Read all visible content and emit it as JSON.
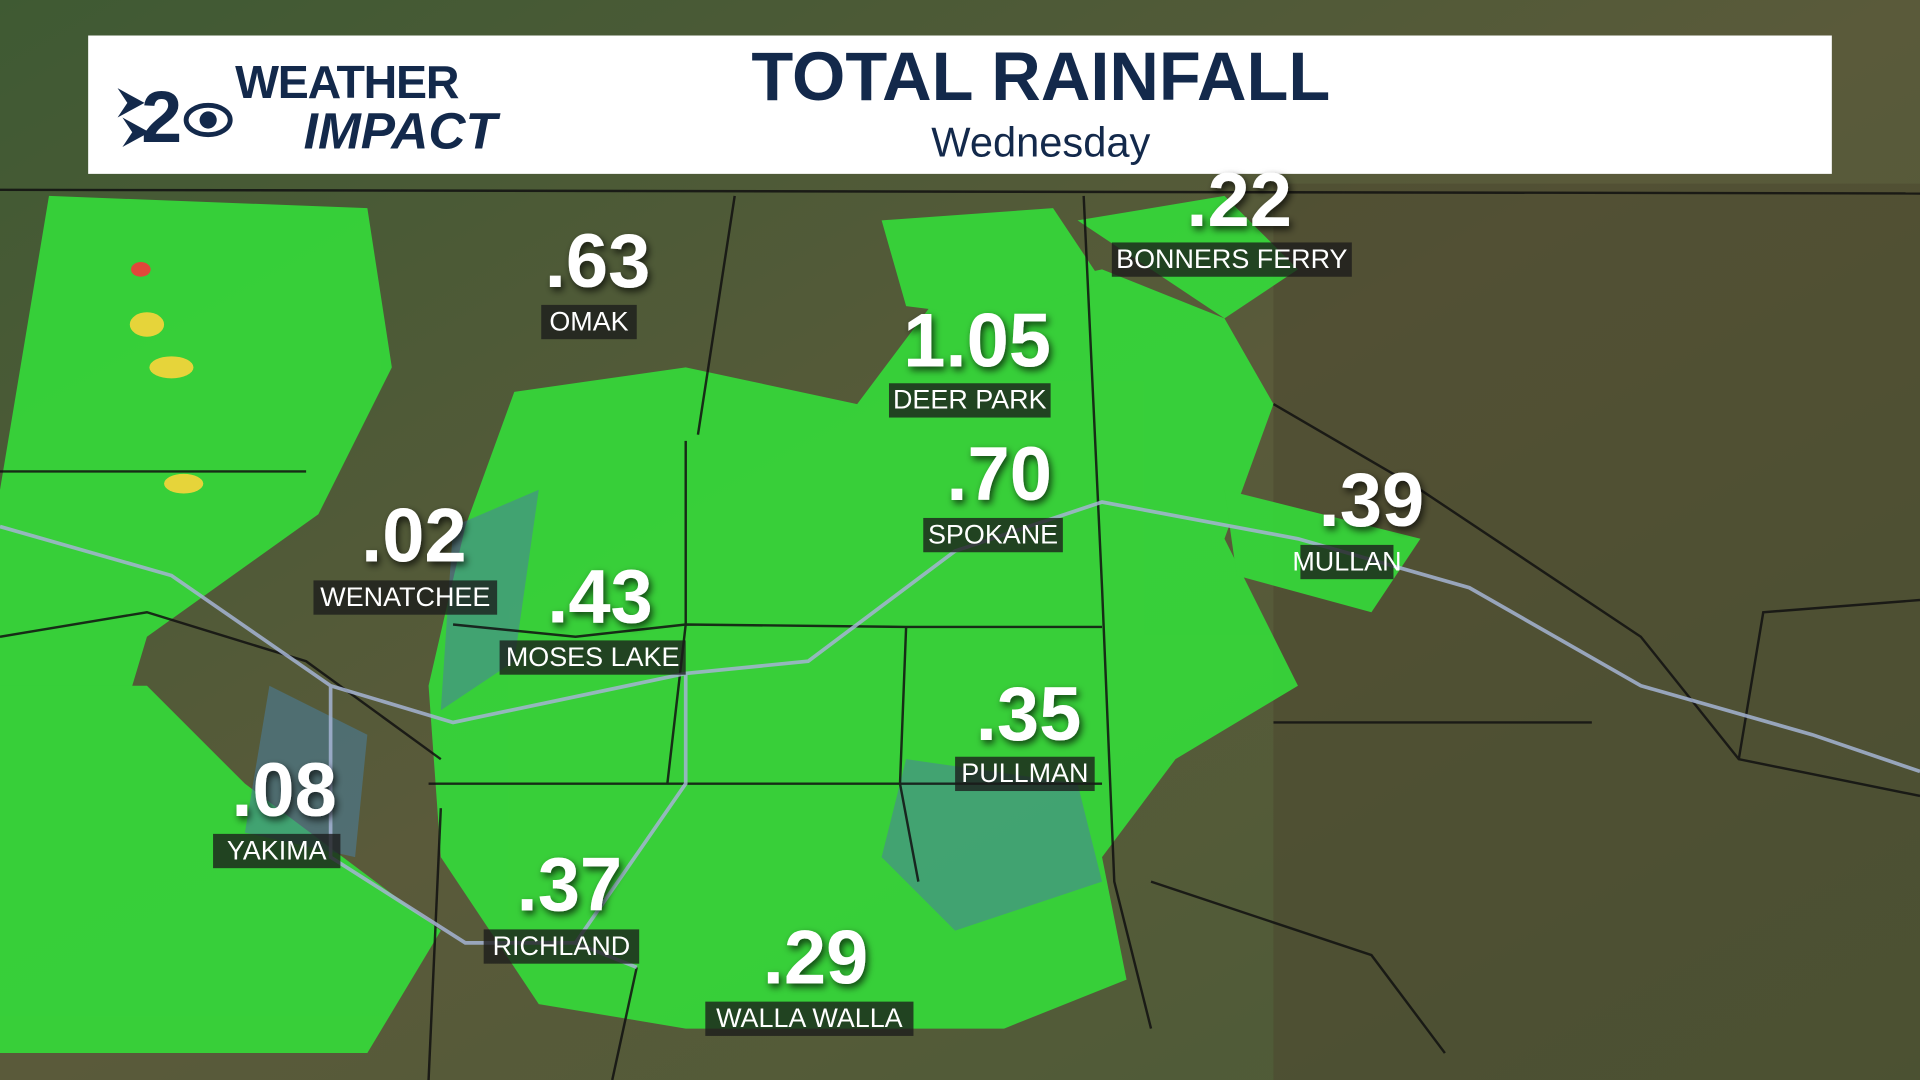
{
  "header": {
    "logo": {
      "channel": "2",
      "line1": "WEATHER",
      "line2": "IMPACT"
    },
    "title": "TOTAL RAINFALL",
    "subtitle": "Wednesday"
  },
  "cities": [
    {
      "amount": ".22",
      "name": "BONNERS FERRY"
    },
    {
      "amount": ".63",
      "name": "OMAK"
    },
    {
      "amount": "1.05",
      "name": "DEER PARK"
    },
    {
      "amount": ".70",
      "name": "SPOKANE"
    },
    {
      "amount": ".39",
      "name": "MULLAN"
    },
    {
      "amount": ".02",
      "name": "WENATCHEE"
    },
    {
      "amount": ".43",
      "name": "MOSES LAKE"
    },
    {
      "amount": ".35",
      "name": "PULLMAN"
    },
    {
      "amount": ".08",
      "name": "YAKIMA"
    },
    {
      "amount": ".37",
      "name": "RICHLAND"
    },
    {
      "amount": ".29",
      "name": "WALLA WALLA"
    }
  ]
}
